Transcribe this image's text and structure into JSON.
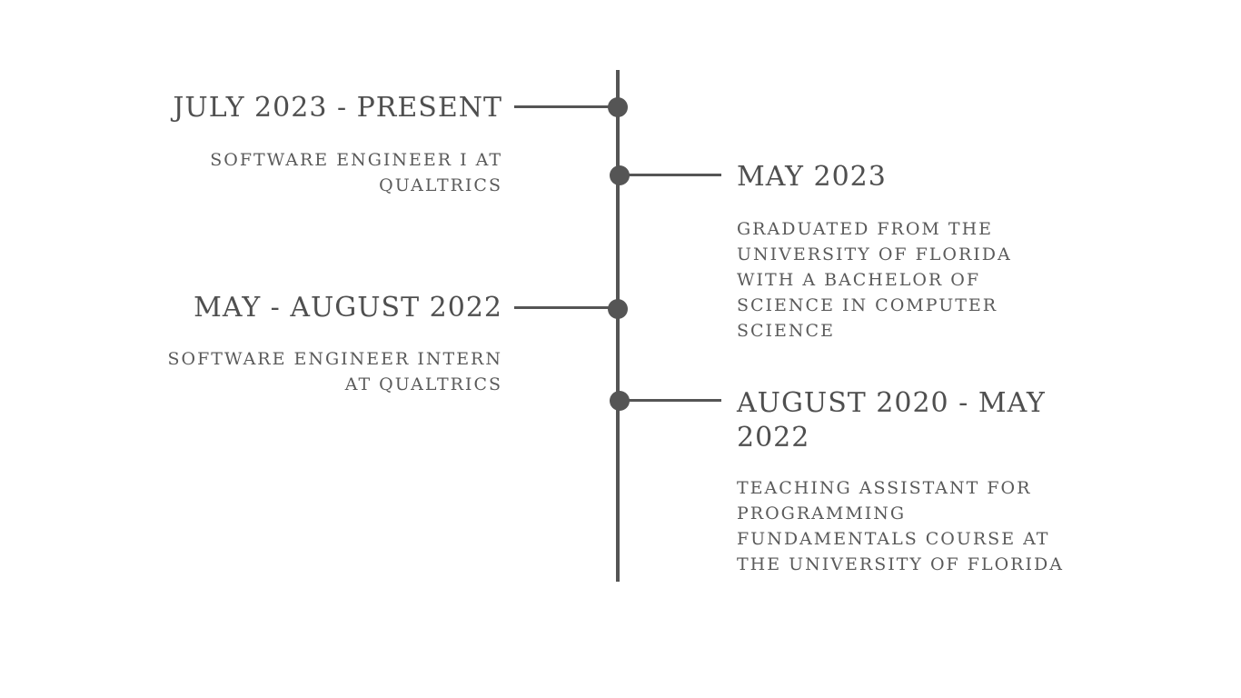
{
  "timeline": {
    "entries": [
      {
        "side": "left",
        "title": "JULY 2023 - PRESENT",
        "description": "SOFTWARE ENGINEER I AT QUALTRICS"
      },
      {
        "side": "right",
        "title": "MAY 2023",
        "description": "GRADUATED FROM THE UNIVERSITY OF FLORIDA WITH A BACHELOR OF SCIENCE IN COMPUTER SCIENCE"
      },
      {
        "side": "left",
        "title": "MAY - AUGUST 2022",
        "description": "SOFTWARE ENGINEER INTERN AT QUALTRICS"
      },
      {
        "side": "right",
        "title": "AUGUST 2020 - MAY 2022",
        "description": "TEACHING ASSISTANT FOR PROGRAMMING FUNDAMENTALS COURSE AT THE UNIVERSITY OF FLORIDA"
      }
    ]
  },
  "colors": {
    "line": "#555555",
    "text": "#4f4f4f"
  }
}
